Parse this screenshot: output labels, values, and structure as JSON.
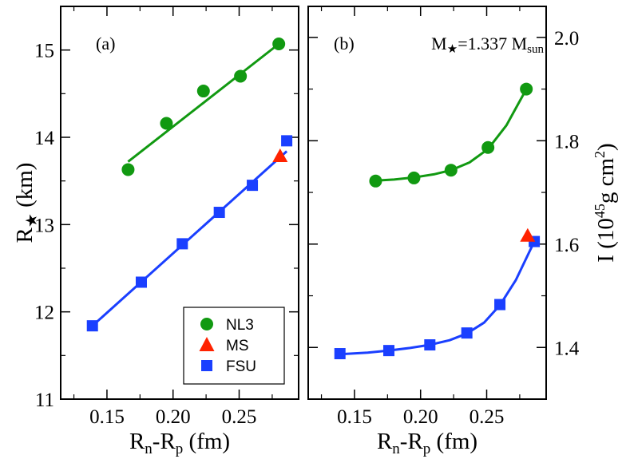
{
  "figure": {
    "x_label_main": "R",
    "x_label_sub_n": "n",
    "x_label_dash": "-R",
    "x_label_sub_p": "p",
    "x_label_unit": " (fm)"
  },
  "colors": {
    "NL3": "#119911",
    "MS": "#ff2200",
    "FSU": "#1a3fff"
  },
  "legend": {
    "items": [
      {
        "label": "NL3",
        "marker": "circle"
      },
      {
        "label": "MS",
        "marker": "triangle"
      },
      {
        "label": "FSU",
        "marker": "square"
      }
    ]
  },
  "chart_data": [
    {
      "type": "scatter",
      "panel_label": "(a)",
      "ylabel_main": "R",
      "ylabel_star": "★",
      "ylabel_unit": " (km)",
      "xlim": [
        0.115,
        0.295
      ],
      "ylim": [
        11,
        15.5
      ],
      "xticks": [
        0.15,
        0.2,
        0.25
      ],
      "xtick_labels": [
        "0.15",
        "0.20",
        "0.25"
      ],
      "yticks": [
        11,
        12,
        13,
        14,
        15
      ],
      "ytick_labels": [
        "11",
        "12",
        "13",
        "14",
        "15"
      ],
      "series": [
        {
          "name": "NL3",
          "marker": "circle",
          "x": [
            0.166,
            0.195,
            0.223,
            0.251,
            0.28
          ],
          "y": [
            13.63,
            14.16,
            14.53,
            14.7,
            15.07
          ],
          "fit": [
            [
              0.166,
              13.72
            ],
            [
              0.28,
              15.07
            ]
          ]
        },
        {
          "name": "FSU",
          "marker": "square",
          "x": [
            0.139,
            0.176,
            0.207,
            0.235,
            0.26,
            0.286
          ],
          "y": [
            11.84,
            12.34,
            12.78,
            13.14,
            13.45,
            13.96
          ],
          "fit": [
            [
              0.139,
              11.84
            ],
            [
              0.286,
              13.84
            ]
          ]
        },
        {
          "name": "MS",
          "marker": "triangle",
          "x": [
            0.281
          ],
          "y": [
            13.79
          ]
        }
      ]
    },
    {
      "type": "scatter",
      "panel_label": "(b)",
      "annotation_main": "M",
      "annotation_star": "★",
      "annotation_eq": "=1.337 M",
      "annotation_sub": "sun",
      "ylabel_main": "I (10",
      "ylabel_sup45": "45",
      "ylabel_mid": "g cm",
      "ylabel_sup2": "2",
      "ylabel_end": ")",
      "xlim": [
        0.115,
        0.295
      ],
      "ylim": [
        1.3,
        2.06
      ],
      "xticks": [
        0.15,
        0.2,
        0.25
      ],
      "xtick_labels": [
        "0.15",
        "0.20",
        "0.25"
      ],
      "yticks": [
        1.4,
        1.6,
        1.8,
        2.0
      ],
      "ytick_labels": [
        "1.4",
        "1.6",
        "1.8",
        "2.0"
      ],
      "series": [
        {
          "name": "NL3",
          "marker": "circle",
          "x": [
            0.166,
            0.195,
            0.223,
            0.251,
            0.28
          ],
          "y": [
            1.722,
            1.728,
            1.743,
            1.787,
            1.9
          ],
          "fit": [
            [
              0.166,
              1.723
            ],
            [
              0.18,
              1.725
            ],
            [
              0.195,
              1.729
            ],
            [
              0.21,
              1.735
            ],
            [
              0.223,
              1.743
            ],
            [
              0.237,
              1.758
            ],
            [
              0.251,
              1.784
            ],
            [
              0.265,
              1.83
            ],
            [
              0.28,
              1.9
            ]
          ]
        },
        {
          "name": "FSU",
          "marker": "square",
          "x": [
            0.139,
            0.176,
            0.207,
            0.235,
            0.26,
            0.286
          ],
          "y": [
            1.388,
            1.394,
            1.405,
            1.428,
            1.483,
            1.605
          ],
          "fit": [
            [
              0.139,
              1.387
            ],
            [
              0.16,
              1.39
            ],
            [
              0.176,
              1.394
            ],
            [
              0.192,
              1.399
            ],
            [
              0.207,
              1.405
            ],
            [
              0.222,
              1.414
            ],
            [
              0.235,
              1.427
            ],
            [
              0.248,
              1.448
            ],
            [
              0.26,
              1.482
            ],
            [
              0.272,
              1.53
            ],
            [
              0.286,
              1.605
            ]
          ]
        },
        {
          "name": "MS",
          "marker": "triangle",
          "x": [
            0.281
          ],
          "y": [
            1.617
          ]
        }
      ]
    }
  ]
}
